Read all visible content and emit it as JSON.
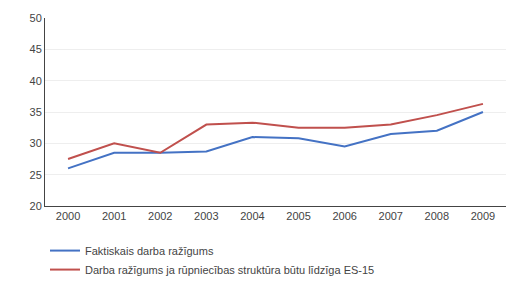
{
  "chart_data": {
    "type": "line",
    "x": [
      2000,
      2001,
      2002,
      2003,
      2004,
      2005,
      2006,
      2007,
      2008,
      2009
    ],
    "series": [
      {
        "name": "Faktiskais darba ražīgums",
        "color": "#4472C4",
        "values": [
          26.0,
          28.5,
          28.5,
          28.7,
          31.0,
          30.8,
          29.5,
          31.5,
          32.0,
          35.0
        ]
      },
      {
        "name": "Darba ražīgums ja rūpniecības struktūra būtu līdzīga ES-15",
        "color": "#C0504D",
        "values": [
          27.5,
          30.0,
          28.5,
          33.0,
          33.3,
          32.5,
          32.5,
          33.0,
          34.5,
          36.3
        ]
      }
    ],
    "xlim": [
      1999.5,
      2009.5
    ],
    "xticks": [
      2000,
      2001,
      2002,
      2003,
      2004,
      2005,
      2006,
      2007,
      2008,
      2009
    ],
    "ylim": [
      20,
      50
    ],
    "yticks": [
      20,
      25,
      30,
      35,
      40,
      45,
      50
    ],
    "grid": "y",
    "legend": "below"
  }
}
